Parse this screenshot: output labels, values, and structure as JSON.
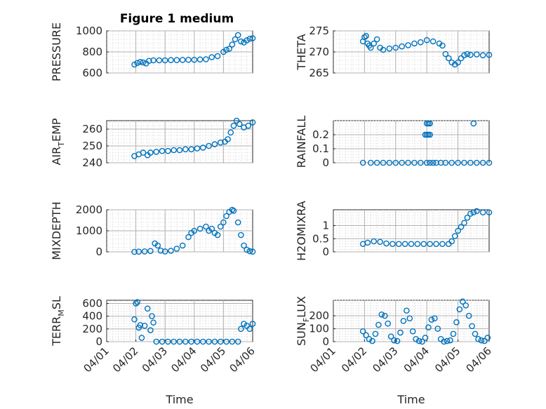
{
  "figure_title": "Figure 1 medium",
  "colors": {
    "marker": "#0072BD",
    "axes": "#262626",
    "grid": "#b0b0b0",
    "background": "#ffffff"
  },
  "chart_data": [
    {
      "type": "scatter",
      "id": "pressure",
      "ylabel": "PRESSURE",
      "ylim": [
        600,
        1000
      ],
      "yticks": [
        600,
        800,
        1000
      ],
      "ytick_labels": [
        "600",
        "800",
        "1000"
      ],
      "xlim": [
        0,
        5
      ],
      "xticks": [],
      "xtick_labels": [],
      "xlabel": "",
      "grid": true,
      "minor_grid": true,
      "x": [
        0.95,
        1.05,
        1.15,
        1.25,
        1.35,
        1.45,
        1.6,
        1.8,
        2,
        2.2,
        2.4,
        2.6,
        2.8,
        3,
        3.2,
        3.4,
        3.6,
        3.8,
        4,
        4.1,
        4.2,
        4.3,
        4.4,
        4.5,
        4.6,
        4.7,
        4.8,
        4.9,
        5
      ],
      "y": [
        680,
        695,
        705,
        700,
        690,
        715,
        720,
        720,
        720,
        722,
        722,
        724,
        725,
        725,
        728,
        730,
        750,
        760,
        800,
        820,
        830,
        870,
        920,
        960,
        900,
        890,
        910,
        925,
        930
      ]
    },
    {
      "type": "scatter",
      "id": "theta",
      "ylabel": "THETA",
      "ylim": [
        265,
        275
      ],
      "yticks": [
        265,
        270,
        275
      ],
      "ytick_labels": [
        "265",
        "270",
        "275"
      ],
      "xlim": [
        0,
        5
      ],
      "xticks": [],
      "xtick_labels": [],
      "xlabel": "",
      "grid": true,
      "minor_grid": true,
      "x": [
        0.95,
        1,
        1.05,
        1.1,
        1.15,
        1.2,
        1.3,
        1.4,
        1.5,
        1.6,
        1.8,
        2,
        2.2,
        2.4,
        2.6,
        2.8,
        3,
        3.2,
        3.4,
        3.5,
        3.6,
        3.7,
        3.8,
        3.9,
        4,
        4.1,
        4.2,
        4.3,
        4.4,
        4.6,
        4.8,
        5
      ],
      "y": [
        272.5,
        273.5,
        273.8,
        272,
        271.5,
        271,
        272,
        273,
        271,
        270.5,
        270.8,
        271,
        271.3,
        271.6,
        272,
        272.3,
        272.8,
        272.5,
        272,
        271.5,
        269.5,
        268.5,
        267.5,
        267,
        267.5,
        268.5,
        269.2,
        269.5,
        269.3,
        269.4,
        269.2,
        269.3
      ]
    },
    {
      "type": "scatter",
      "id": "air_temp",
      "ylabel_main": "AIR",
      "ylabel_sub": "T",
      "ylabel_tail": "EMP",
      "ylim": [
        240,
        265
      ],
      "yticks": [
        240,
        250,
        260
      ],
      "ytick_labels": [
        "240",
        "250",
        "260"
      ],
      "xlim": [
        0,
        5
      ],
      "xticks": [],
      "xtick_labels": [],
      "xlabel": "",
      "grid": true,
      "minor_grid": true,
      "x": [
        0.95,
        1.1,
        1.25,
        1.4,
        1.5,
        1.7,
        1.9,
        2.1,
        2.3,
        2.5,
        2.7,
        2.9,
        3.1,
        3.3,
        3.5,
        3.7,
        3.9,
        4.05,
        4.15,
        4.25,
        4.35,
        4.45,
        4.55,
        4.7,
        4.85,
        5
      ],
      "y": [
        244,
        245,
        246,
        244.5,
        246,
        246.5,
        247,
        247,
        247.5,
        247.5,
        248,
        248,
        248.5,
        249,
        250,
        251,
        252,
        252.5,
        254,
        258,
        262,
        265,
        263,
        261,
        262,
        264
      ]
    },
    {
      "type": "scatter",
      "id": "rainfall",
      "ylabel": "RAINFALL",
      "ylim": [
        0,
        0.3
      ],
      "yticks": [
        0,
        0.1,
        0.2
      ],
      "ytick_labels": [
        "0",
        "0.1",
        "0.2"
      ],
      "xlim": [
        0,
        5
      ],
      "xticks": [],
      "xtick_labels": [],
      "xlabel": "",
      "grid": true,
      "minor_grid": true,
      "x": [
        0.95,
        1.2,
        1.4,
        1.6,
        1.8,
        2,
        2.2,
        2.4,
        2.6,
        2.8,
        3,
        3.1,
        3.2,
        3.3,
        3.45,
        3.6,
        3.8,
        4,
        4.2,
        4.4,
        4.6,
        4.8,
        5,
        2.95,
        3.0,
        3.05,
        3.1,
        3.0,
        3.05,
        3.1,
        4.5
      ],
      "y": [
        0,
        0,
        0,
        0,
        0,
        0,
        0,
        0,
        0,
        0,
        0,
        0,
        0,
        0,
        0,
        0,
        0,
        0,
        0,
        0,
        0,
        0,
        0,
        0.2,
        0.2,
        0.2,
        0.2,
        0.28,
        0.28,
        0.28,
        0.28
      ]
    },
    {
      "type": "scatter",
      "id": "mixdepth",
      "ylabel": "MIXDEPTH",
      "ylim": [
        0,
        2000
      ],
      "yticks": [
        0,
        1000,
        2000
      ],
      "ytick_labels": [
        "0",
        "1000",
        "2000"
      ],
      "xlim": [
        0,
        5
      ],
      "xticks": [],
      "xtick_labels": [],
      "xlabel": "",
      "grid": true,
      "minor_grid": true,
      "x": [
        0.95,
        1.1,
        1.3,
        1.5,
        1.65,
        1.75,
        1.85,
        2,
        2.2,
        2.4,
        2.6,
        2.8,
        2.9,
        3,
        3.2,
        3.4,
        3.5,
        3.6,
        3.7,
        3.8,
        3.9,
        4,
        4.1,
        4.2,
        4.3,
        4.35,
        4.5,
        4.6,
        4.7,
        4.8,
        4.9,
        5
      ],
      "y": [
        0,
        10,
        20,
        40,
        400,
        300,
        60,
        20,
        50,
        150,
        300,
        700,
        900,
        1000,
        1100,
        1200,
        1000,
        1100,
        900,
        800,
        1200,
        1400,
        1700,
        1900,
        2000,
        1950,
        1400,
        800,
        300,
        100,
        30,
        10
      ]
    },
    {
      "type": "scatter",
      "id": "h2omixra",
      "ylabel": "H2OMIXRA",
      "ylim": [
        0,
        1.6
      ],
      "yticks": [
        0,
        0.5,
        1
      ],
      "ytick_labels": [
        "0",
        "0.5",
        "1"
      ],
      "xlim": [
        0,
        5
      ],
      "xticks": [],
      "xtick_labels": [],
      "xlabel": "",
      "grid": true,
      "minor_grid": true,
      "x": [
        0.95,
        1.1,
        1.3,
        1.5,
        1.7,
        1.9,
        2.1,
        2.3,
        2.5,
        2.7,
        2.9,
        3.1,
        3.3,
        3.5,
        3.7,
        3.8,
        3.9,
        4,
        4.1,
        4.2,
        4.3,
        4.4,
        4.5,
        4.6,
        4.8,
        5
      ],
      "y": [
        0.3,
        0.35,
        0.4,
        0.38,
        0.32,
        0.3,
        0.3,
        0.3,
        0.3,
        0.3,
        0.3,
        0.3,
        0.3,
        0.3,
        0.3,
        0.4,
        0.6,
        0.8,
        0.95,
        1.1,
        1.3,
        1.45,
        1.5,
        1.55,
        1.5,
        1.5
      ]
    },
    {
      "type": "scatter",
      "id": "terr_msl",
      "ylabel_main": "TERR",
      "ylabel_sub": "M",
      "ylabel_tail": "SL",
      "ylim": [
        0,
        650
      ],
      "yticks": [
        0,
        200,
        400,
        600
      ],
      "ytick_labels": [
        "0",
        "200",
        "400",
        "600"
      ],
      "xlim": [
        0,
        5
      ],
      "xticks": [
        0,
        1,
        2,
        3,
        4,
        5
      ],
      "xtick_labels": [
        "04/01",
        "04/02",
        "04/03",
        "04/04",
        "04/05",
        "04/06"
      ],
      "xlabel": "Time",
      "grid": true,
      "minor_grid": true,
      "x": [
        0.95,
        1,
        1.05,
        1.1,
        1.15,
        1.2,
        1.3,
        1.4,
        1.5,
        1.55,
        1.6,
        1.7,
        1.9,
        2.1,
        2.3,
        2.5,
        2.7,
        2.9,
        3.1,
        3.3,
        3.5,
        3.7,
        3.9,
        4.1,
        4.3,
        4.5,
        4.6,
        4.7,
        4.8,
        4.9,
        5
      ],
      "y": [
        350,
        600,
        620,
        220,
        260,
        60,
        250,
        520,
        180,
        400,
        300,
        0,
        0,
        0,
        0,
        0,
        0,
        0,
        0,
        0,
        0,
        0,
        0,
        0,
        0,
        0,
        200,
        280,
        250,
        200,
        280
      ]
    },
    {
      "type": "scatter",
      "id": "sun_flux",
      "ylabel_main": "SUN",
      "ylabel_sub": "F",
      "ylabel_tail": "LUX",
      "ylim": [
        0,
        320
      ],
      "yticks": [
        0,
        100,
        200
      ],
      "ytick_labels": [
        "0",
        "100",
        "200"
      ],
      "xlim": [
        0,
        5
      ],
      "xticks": [
        0,
        1,
        2,
        3,
        4,
        5
      ],
      "xtick_labels": [
        "04/01",
        "04/02",
        "04/03",
        "04/04",
        "04/05",
        "04/06"
      ],
      "xlabel": "Time",
      "grid": true,
      "minor_grid": true,
      "x": [
        0.95,
        1.05,
        1.15,
        1.25,
        1.35,
        1.45,
        1.55,
        1.65,
        1.75,
        1.85,
        1.95,
        2.05,
        2.15,
        2.25,
        2.35,
        2.45,
        2.55,
        2.65,
        2.75,
        2.85,
        2.95,
        3.05,
        3.15,
        3.25,
        3.35,
        3.45,
        3.55,
        3.65,
        3.75,
        3.85,
        3.95,
        4.05,
        4.15,
        4.25,
        4.35,
        4.45,
        4.55,
        4.65,
        4.75,
        4.85,
        4.95
      ],
      "y": [
        80,
        50,
        20,
        5,
        60,
        130,
        210,
        200,
        140,
        40,
        10,
        5,
        70,
        160,
        240,
        180,
        80,
        20,
        5,
        0,
        30,
        110,
        170,
        180,
        100,
        20,
        0,
        5,
        10,
        60,
        150,
        250,
        310,
        280,
        200,
        120,
        60,
        20,
        10,
        5,
        30
      ]
    }
  ]
}
